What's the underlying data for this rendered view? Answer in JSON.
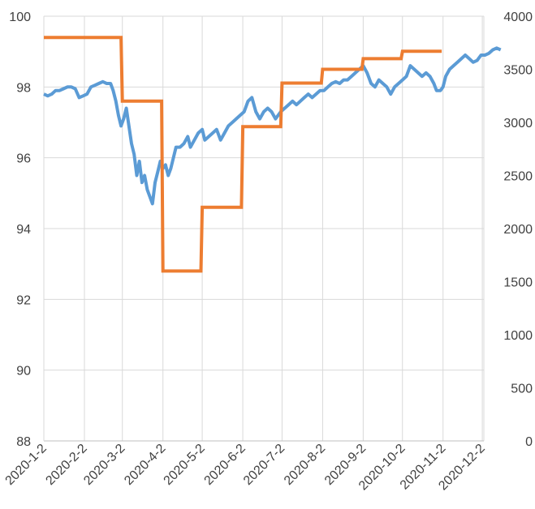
{
  "chart_data": {
    "type": "line",
    "title": "",
    "xlabel": "",
    "ylabel": "",
    "y2label": "",
    "grid": true,
    "legend": "none",
    "x_ticks": [
      "2020-1-2",
      "2020-2-2",
      "2020-3-2",
      "2020-4-2",
      "2020-5-2",
      "2020-6-2",
      "2020-7-2",
      "2020-8-2",
      "2020-9-2",
      "2020-10-2",
      "2020-11-2",
      "2020-12-2"
    ],
    "y_left": {
      "min": 88,
      "max": 100,
      "ticks": [
        "88",
        "90",
        "92",
        "94",
        "96",
        "98",
        "100"
      ]
    },
    "y_right": {
      "min": 0,
      "max": 4000,
      "ticks": [
        "0",
        "500",
        "1000",
        "1500",
        "2000",
        "2500",
        "3000",
        "3500",
        "4000"
      ]
    },
    "series": [
      {
        "name": "",
        "axis": "left",
        "color": "#5b9bd5",
        "points": [
          [
            "2020-01-02",
            97.8
          ],
          [
            "2020-01-05",
            97.75
          ],
          [
            "2020-01-08",
            97.8
          ],
          [
            "2020-01-11",
            97.9
          ],
          [
            "2020-01-14",
            97.9
          ],
          [
            "2020-01-17",
            97.95
          ],
          [
            "2020-01-20",
            98.0
          ],
          [
            "2020-01-23",
            98.0
          ],
          [
            "2020-01-26",
            97.95
          ],
          [
            "2020-01-29",
            97.7
          ],
          [
            "2020-02-01",
            97.75
          ],
          [
            "2020-02-04",
            97.8
          ],
          [
            "2020-02-07",
            98.0
          ],
          [
            "2020-02-10",
            98.05
          ],
          [
            "2020-02-13",
            98.1
          ],
          [
            "2020-02-16",
            98.15
          ],
          [
            "2020-02-19",
            98.1
          ],
          [
            "2020-02-22",
            98.1
          ],
          [
            "2020-02-24",
            97.9
          ],
          [
            "2020-02-26",
            97.6
          ],
          [
            "2020-02-28",
            97.2
          ],
          [
            "2020-03-01",
            96.9
          ],
          [
            "2020-03-03",
            97.1
          ],
          [
            "2020-03-05",
            97.4
          ],
          [
            "2020-03-07",
            96.9
          ],
          [
            "2020-03-09",
            96.4
          ],
          [
            "2020-03-11",
            96.1
          ],
          [
            "2020-03-13",
            95.5
          ],
          [
            "2020-03-15",
            95.9
          ],
          [
            "2020-03-17",
            95.3
          ],
          [
            "2020-03-19",
            95.5
          ],
          [
            "2020-03-21",
            95.1
          ],
          [
            "2020-03-23",
            94.9
          ],
          [
            "2020-03-25",
            94.7
          ],
          [
            "2020-03-27",
            95.3
          ],
          [
            "2020-03-29",
            95.6
          ],
          [
            "2020-03-31",
            95.9
          ],
          [
            "2020-04-02",
            95.7
          ],
          [
            "2020-04-04",
            95.8
          ],
          [
            "2020-04-06",
            95.5
          ],
          [
            "2020-04-08",
            95.7
          ],
          [
            "2020-04-10",
            96.0
          ],
          [
            "2020-04-12",
            96.3
          ],
          [
            "2020-04-15",
            96.3
          ],
          [
            "2020-04-18",
            96.4
          ],
          [
            "2020-04-21",
            96.6
          ],
          [
            "2020-04-23",
            96.3
          ],
          [
            "2020-04-26",
            96.5
          ],
          [
            "2020-04-29",
            96.7
          ],
          [
            "2020-05-02",
            96.8
          ],
          [
            "2020-05-04",
            96.5
          ],
          [
            "2020-05-07",
            96.6
          ],
          [
            "2020-05-10",
            96.7
          ],
          [
            "2020-05-13",
            96.8
          ],
          [
            "2020-05-16",
            96.5
          ],
          [
            "2020-05-19",
            96.7
          ],
          [
            "2020-05-22",
            96.9
          ],
          [
            "2020-05-25",
            97.0
          ],
          [
            "2020-05-28",
            97.1
          ],
          [
            "2020-05-31",
            97.2
          ],
          [
            "2020-06-03",
            97.3
          ],
          [
            "2020-06-06",
            97.6
          ],
          [
            "2020-06-09",
            97.7
          ],
          [
            "2020-06-12",
            97.3
          ],
          [
            "2020-06-15",
            97.1
          ],
          [
            "2020-06-18",
            97.3
          ],
          [
            "2020-06-21",
            97.4
          ],
          [
            "2020-06-24",
            97.3
          ],
          [
            "2020-06-27",
            97.1
          ],
          [
            "2020-07-01",
            97.3
          ],
          [
            "2020-07-04",
            97.4
          ],
          [
            "2020-07-07",
            97.5
          ],
          [
            "2020-07-10",
            97.6
          ],
          [
            "2020-07-13",
            97.5
          ],
          [
            "2020-07-16",
            97.6
          ],
          [
            "2020-07-19",
            97.7
          ],
          [
            "2020-07-22",
            97.8
          ],
          [
            "2020-07-25",
            97.7
          ],
          [
            "2020-07-28",
            97.8
          ],
          [
            "2020-07-31",
            97.9
          ],
          [
            "2020-08-03",
            97.9
          ],
          [
            "2020-08-06",
            98.0
          ],
          [
            "2020-08-09",
            98.1
          ],
          [
            "2020-08-12",
            98.15
          ],
          [
            "2020-08-15",
            98.1
          ],
          [
            "2020-08-18",
            98.2
          ],
          [
            "2020-08-21",
            98.2
          ],
          [
            "2020-08-24",
            98.3
          ],
          [
            "2020-08-27",
            98.4
          ],
          [
            "2020-08-30",
            98.5
          ],
          [
            "2020-09-02",
            98.6
          ],
          [
            "2020-09-05",
            98.4
          ],
          [
            "2020-09-08",
            98.1
          ],
          [
            "2020-09-11",
            98.0
          ],
          [
            "2020-09-14",
            98.2
          ],
          [
            "2020-09-17",
            98.1
          ],
          [
            "2020-09-20",
            98.0
          ],
          [
            "2020-09-23",
            97.8
          ],
          [
            "2020-09-26",
            98.0
          ],
          [
            "2020-09-29",
            98.1
          ],
          [
            "2020-10-02",
            98.2
          ],
          [
            "2020-10-05",
            98.3
          ],
          [
            "2020-10-08",
            98.6
          ],
          [
            "2020-10-11",
            98.5
          ],
          [
            "2020-10-14",
            98.4
          ],
          [
            "2020-10-17",
            98.3
          ],
          [
            "2020-10-20",
            98.4
          ],
          [
            "2020-10-23",
            98.3
          ],
          [
            "2020-10-26",
            98.1
          ],
          [
            "2020-10-28",
            97.9
          ],
          [
            "2020-10-31",
            97.9
          ],
          [
            "2020-11-02",
            98.0
          ],
          [
            "2020-11-04",
            98.3
          ],
          [
            "2020-11-07",
            98.5
          ],
          [
            "2020-11-10",
            98.6
          ],
          [
            "2020-11-13",
            98.7
          ],
          [
            "2020-11-16",
            98.8
          ],
          [
            "2020-11-19",
            98.9
          ],
          [
            "2020-11-22",
            98.8
          ],
          [
            "2020-11-25",
            98.7
          ],
          [
            "2020-11-28",
            98.75
          ],
          [
            "2020-12-01",
            98.9
          ],
          [
            "2020-12-04",
            98.9
          ],
          [
            "2020-12-07",
            98.95
          ],
          [
            "2020-12-10",
            99.05
          ],
          [
            "2020-12-13",
            99.1
          ],
          [
            "2020-12-16",
            99.05
          ]
        ]
      },
      {
        "name": "",
        "axis": "right",
        "color": "#ed7d31",
        "step": true,
        "points": [
          [
            "2020-01-02",
            3800
          ],
          [
            "2020-03-01",
            3800
          ],
          [
            "2020-03-02",
            3200
          ],
          [
            "2020-04-01",
            3200
          ],
          [
            "2020-04-02",
            1600
          ],
          [
            "2020-05-01",
            1600
          ],
          [
            "2020-05-02",
            2200
          ],
          [
            "2020-06-01",
            2200
          ],
          [
            "2020-06-02",
            2960
          ],
          [
            "2020-07-01",
            2960
          ],
          [
            "2020-07-02",
            3370
          ],
          [
            "2020-08-01",
            3370
          ],
          [
            "2020-08-02",
            3500
          ],
          [
            "2020-09-01",
            3500
          ],
          [
            "2020-09-02",
            3600
          ],
          [
            "2020-10-01",
            3600
          ],
          [
            "2020-10-02",
            3670
          ],
          [
            "2020-11-01",
            3670
          ]
        ]
      }
    ]
  }
}
